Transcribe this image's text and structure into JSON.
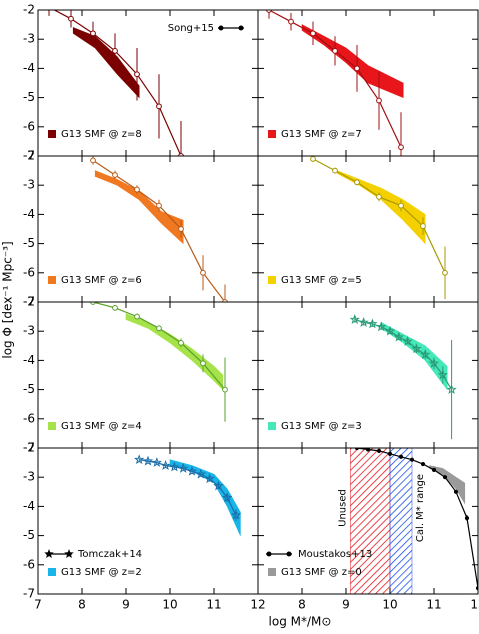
{
  "chart_data": {
    "type": "panels",
    "xlabel": "log M*/M⊙",
    "ylabel": "log Φ [dex⁻¹ Mpc⁻³]",
    "xlim": [
      7,
      12
    ],
    "ylim": [
      -7,
      -2
    ],
    "xticks": [
      7,
      8,
      9,
      10,
      11,
      12
    ],
    "yticks": [
      -2,
      -3,
      -4,
      -5,
      -6,
      -7
    ],
    "panels": [
      {
        "label": "G13 SMF @ z=8",
        "color": "#7b0000",
        "band": {
          "x": [
            7.8,
            8.3,
            8.8,
            9.3
          ],
          "low": [
            -2.8,
            -3.3,
            -4.2,
            -5.0
          ],
          "high": [
            -2.6,
            -2.9,
            -3.6,
            -4.6
          ]
        },
        "obs": {
          "name": "Song+15",
          "legend": "top-right",
          "marker": "circle",
          "color": "#7b0000",
          "x": [
            7.25,
            7.75,
            8.25,
            8.75,
            9.25,
            9.75,
            10.25
          ],
          "values": [
            -1.9,
            -2.3,
            -2.8,
            -3.4,
            -4.2,
            -5.3,
            -7.0
          ],
          "errors": [
            0.3,
            0.3,
            0.4,
            0.6,
            0.9,
            1.1,
            1.2
          ]
        }
      },
      {
        "label": "G13 SMF @ z=7",
        "color": "#e8151b",
        "band": {
          "x": [
            8.0,
            8.5,
            9.0,
            9.5,
            10.3
          ],
          "low": [
            -2.7,
            -3.2,
            -3.8,
            -4.5,
            -5.0
          ],
          "high": [
            -2.5,
            -2.9,
            -3.3,
            -3.9,
            -4.5
          ]
        },
        "obs": {
          "marker": "circle",
          "color": "#a01010",
          "x": [
            7.25,
            7.75,
            8.25,
            8.75,
            9.25,
            9.75,
            10.25
          ],
          "values": [
            -2.0,
            -2.4,
            -2.8,
            -3.4,
            -4.0,
            -5.1,
            -6.7
          ],
          "errors": [
            0.3,
            0.3,
            0.4,
            0.5,
            0.8,
            1.0,
            1.2
          ]
        }
      },
      {
        "label": "G13 SMF @ z=6",
        "color": "#f07820",
        "band": {
          "x": [
            8.3,
            8.8,
            9.3,
            9.8,
            10.3
          ],
          "low": [
            -2.7,
            -3.0,
            -3.5,
            -4.3,
            -5.0
          ],
          "high": [
            -2.5,
            -2.8,
            -3.2,
            -3.9,
            -4.2
          ]
        },
        "obs": {
          "marker": "circle",
          "color": "#b85a18",
          "x": [
            8.25,
            8.75,
            9.25,
            9.75,
            10.25,
            10.75,
            11.25
          ],
          "values": [
            -2.15,
            -2.65,
            -3.15,
            -3.7,
            -4.5,
            -6.0,
            -7.0
          ],
          "errors": [
            0.15,
            0.15,
            0.15,
            0.2,
            0.3,
            0.6,
            0.6
          ]
        }
      },
      {
        "label": "G13 SMF @ z=5",
        "color": "#f5d000",
        "band": {
          "x": [
            8.8,
            9.3,
            9.8,
            10.3,
            10.8
          ],
          "low": [
            -2.6,
            -3.0,
            -3.5,
            -4.2,
            -5.0
          ],
          "high": [
            -2.5,
            -2.8,
            -3.1,
            -3.5,
            -4.0
          ]
        },
        "obs": {
          "marker": "circle",
          "color": "#a89a00",
          "x": [
            8.25,
            8.75,
            9.25,
            9.75,
            10.25,
            10.75,
            11.25
          ],
          "values": [
            -2.1,
            -2.5,
            -2.9,
            -3.4,
            -3.7,
            -4.4,
            -6.0
          ],
          "errors": [
            0.1,
            0.1,
            0.1,
            0.15,
            0.2,
            0.3,
            0.9
          ]
        }
      },
      {
        "label": "G13 SMF @ z=4",
        "color": "#a6e34a",
        "band": {
          "x": [
            9.0,
            9.5,
            10.0,
            10.5,
            11.0,
            11.2
          ],
          "low": [
            -2.6,
            -2.9,
            -3.4,
            -4.0,
            -4.7,
            -5.0
          ],
          "high": [
            -2.4,
            -2.7,
            -3.1,
            -3.6,
            -4.2,
            -4.5
          ]
        },
        "obs": {
          "marker": "circle",
          "color": "#5aa02a",
          "x": [
            8.25,
            8.75,
            9.25,
            9.75,
            10.25,
            10.75,
            11.25
          ],
          "values": [
            -2.0,
            -2.2,
            -2.5,
            -2.9,
            -3.4,
            -4.1,
            -5.0
          ],
          "errors": [
            0.1,
            0.1,
            0.1,
            0.1,
            0.15,
            0.3,
            1.1
          ]
        }
      },
      {
        "label": "G13 SMF @ z=3",
        "color": "#45e8b8",
        "band": {
          "x": [
            9.8,
            10.3,
            10.8,
            11.3
          ],
          "low": [
            -2.9,
            -3.4,
            -4.0,
            -5.0
          ],
          "high": [
            -2.7,
            -3.1,
            -3.5,
            -4.2
          ]
        },
        "obs": {
          "marker": "star",
          "color": "#2a9a78",
          "x": [
            9.2,
            9.4,
            9.6,
            9.8,
            10.0,
            10.2,
            10.4,
            10.6,
            10.8,
            11.0,
            11.2,
            11.4
          ],
          "values": [
            -2.6,
            -2.7,
            -2.75,
            -2.85,
            -3.0,
            -3.2,
            -3.35,
            -3.6,
            -3.8,
            -4.1,
            -4.5,
            -5.0
          ],
          "errors": [
            0.1,
            0.1,
            0.1,
            0.1,
            0.1,
            0.1,
            0.1,
            0.15,
            0.15,
            0.2,
            0.3,
            1.7
          ]
        }
      },
      {
        "label": "G13 SMF @ z=2",
        "color": "#19b5e8",
        "band": {
          "x": [
            10.0,
            10.5,
            11.0,
            11.3,
            11.6
          ],
          "low": [
            -2.6,
            -2.8,
            -3.2,
            -4.0,
            -5.0
          ],
          "high": [
            -2.4,
            -2.6,
            -2.9,
            -3.4,
            -4.2
          ]
        },
        "obs": {
          "name": "Tomczak+14",
          "legend": "bottom-left",
          "marker": "star",
          "color": "#1a6ea8",
          "x": [
            9.3,
            9.5,
            9.7,
            9.9,
            10.1,
            10.3,
            10.5,
            10.7,
            10.9,
            11.1,
            11.3,
            11.5
          ],
          "values": [
            -2.4,
            -2.45,
            -2.5,
            -2.6,
            -2.65,
            -2.7,
            -2.8,
            -2.9,
            -3.05,
            -3.3,
            -3.7,
            -4.3
          ],
          "errors": [
            0.05,
            0.05,
            0.05,
            0.05,
            0.05,
            0.05,
            0.05,
            0.05,
            0.1,
            0.1,
            0.15,
            0.2
          ]
        }
      },
      {
        "label": "G13 SMF @ z=0",
        "color": "#9a9a9a",
        "band": {
          "x": [
            10.9,
            11.2,
            11.5,
            11.7
          ],
          "low": [
            -2.7,
            -2.9,
            -3.4,
            -3.9
          ],
          "high": [
            -2.6,
            -2.7,
            -3.0,
            -3.2
          ]
        },
        "obs": {
          "name": "Moustakos+13",
          "legend": "bottom-left",
          "marker": "circle",
          "color": "#000000",
          "x": [
            9.0,
            9.25,
            9.5,
            9.75,
            10.0,
            10.25,
            10.5,
            10.75,
            11.0,
            11.25,
            11.5,
            11.75,
            12.0
          ],
          "values": [
            -1.9,
            -2.0,
            -2.05,
            -2.1,
            -2.2,
            -2.3,
            -2.4,
            -2.55,
            -2.75,
            -3.0,
            -3.5,
            -4.4,
            -6.8
          ],
          "errors": [
            0.02,
            0.02,
            0.02,
            0.02,
            0.02,
            0.02,
            0.02,
            0.02,
            0.03,
            0.03,
            0.05,
            0.1,
            0.3
          ]
        },
        "regions": [
          {
            "label": "Unused",
            "color": "#e8151b",
            "range": [
              9.1,
              10.0
            ]
          },
          {
            "label": "Cal. M* range",
            "color": "#1a4fe8",
            "range": [
              10.0,
              10.5
            ]
          }
        ]
      }
    ]
  }
}
